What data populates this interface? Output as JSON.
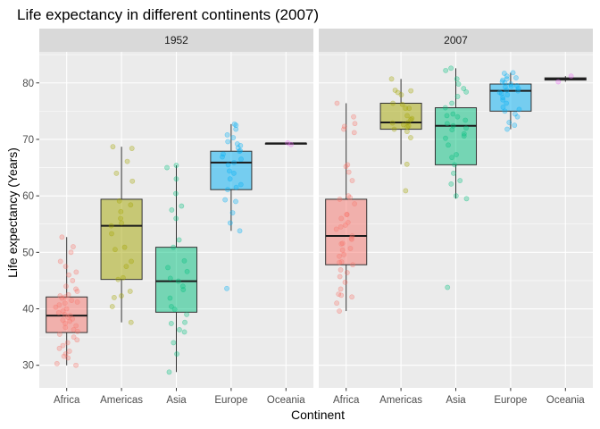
{
  "chart_data": {
    "type": "box",
    "title": "Life expectancy in different continents (2007)",
    "xlabel": "Continent",
    "ylabel": "Life expectancy (Years)",
    "categories": [
      "Africa",
      "Americas",
      "Asia",
      "Europe",
      "Oceania"
    ],
    "ylim": [
      26,
      85.5
    ],
    "yticks": [
      30,
      40,
      50,
      60,
      70,
      80
    ],
    "grid": true,
    "legend": "none",
    "colors": {
      "Africa": "#F8766D",
      "Americas": "#A3A500",
      "Asia": "#00BF7D",
      "Europe": "#00B0F6",
      "Oceania": "#E76BF3"
    },
    "panels": [
      {
        "label": "1952",
        "boxes": [
          {
            "category": "Africa",
            "min": 30.0,
            "q1": 35.8,
            "median": 38.8,
            "q3": 42.1,
            "max": 52.7,
            "points": [
              30.0,
              30.3,
              31.3,
              31.6,
              32.0,
              32.5,
              33.0,
              33.5,
              34.0,
              34.5,
              35.0,
              35.5,
              36.0,
              36.3,
              36.7,
              37.0,
              37.4,
              37.8,
              38.0,
              38.2,
              38.5,
              38.8,
              39.0,
              39.3,
              39.6,
              40.0,
              40.3,
              40.7,
              41.0,
              41.2,
              41.5,
              41.9,
              42.1,
              42.3,
              42.5,
              43.1,
              43.5,
              44.0,
              45.0,
              46.0,
              46.5,
              47.5,
              48.4,
              50.0,
              51.0,
              52.7
            ]
          },
          {
            "category": "Americas",
            "min": 37.6,
            "q1": 45.2,
            "median": 54.7,
            "q3": 59.4,
            "max": 68.7,
            "points": [
              37.6,
              40.4,
              42.0,
              42.3,
              43.1,
              45.2,
              45.5,
              47.5,
              48.4,
              50.5,
              50.9,
              53.3,
              54.7,
              55.2,
              56.0,
              57.2,
              58.4,
              59.1,
              62.6,
              64.0,
              66.1,
              68.4,
              68.7
            ]
          },
          {
            "category": "Asia",
            "min": 28.8,
            "q1": 39.4,
            "median": 44.9,
            "q3": 50.9,
            "max": 65.4,
            "points": [
              28.8,
              32.0,
              34.0,
              35.9,
              36.3,
              37.4,
              37.6,
              39.0,
              39.9,
              40.4,
              41.9,
              43.4,
              44.0,
              44.9,
              45.4,
              46.6,
              47.3,
              48.5,
              50.9,
              52.2,
              56.0,
              57.5,
              58.2,
              60.4,
              63.0,
              65.0,
              65.4
            ]
          },
          {
            "category": "Europe",
            "min": 53.8,
            "q1": 61.1,
            "median": 65.9,
            "q3": 67.9,
            "max": 72.7,
            "points": [
              43.6,
              53.8,
              55.2,
              57.0,
              59.0,
              59.3,
              61.1,
              61.5,
              62.0,
              63.0,
              64.0,
              64.4,
              65.5,
              65.9,
              66.5,
              66.9,
              67.4,
              67.9,
              68.0,
              68.5,
              68.9,
              69.2,
              69.6,
              70.3,
              70.8,
              71.8,
              72.5,
              72.7
            ]
          },
          {
            "category": "Oceania",
            "min": 69.1,
            "q1": 69.2,
            "median": 69.3,
            "q3": 69.3,
            "max": 69.4,
            "points": [
              69.1,
              69.4
            ]
          }
        ]
      },
      {
        "label": "2007",
        "boxes": [
          {
            "category": "Africa",
            "min": 39.6,
            "q1": 47.8,
            "median": 52.9,
            "q3": 59.4,
            "max": 76.4,
            "points": [
              39.6,
              41.0,
              42.1,
              42.4,
              42.6,
              43.5,
              44.7,
              45.7,
              46.4,
              46.9,
              47.8,
              48.2,
              48.3,
              49.3,
              49.6,
              50.4,
              50.7,
              51.5,
              51.6,
              52.3,
              52.5,
              52.9,
              54.1,
              54.5,
              54.8,
              55.3,
              56.0,
              56.7,
              56.7,
              58.6,
              59.4,
              59.7,
              60.0,
              62.7,
              64.2,
              65.2,
              65.5,
              71.2,
              71.8,
              72.3,
              72.8,
              74.0,
              76.4
            ]
          },
          {
            "category": "Americas",
            "min": 65.6,
            "q1": 71.8,
            "median": 73.0,
            "q3": 76.4,
            "max": 80.7,
            "points": [
              60.9,
              65.6,
              70.3,
              71.4,
              71.8,
              72.2,
              72.4,
              72.6,
              72.9,
              73.0,
              73.5,
              73.7,
              74.2,
              75.5,
              75.5,
              76.2,
              76.4,
              77.9,
              78.3,
              78.6,
              78.7,
              80.7
            ]
          },
          {
            "category": "Asia",
            "min": 59.5,
            "q1": 65.5,
            "median": 72.4,
            "q3": 75.6,
            "max": 82.6,
            "points": [
              43.8,
              59.5,
              60.0,
              62.1,
              62.7,
              64.0,
              65.5,
              66.8,
              67.3,
              69.0,
              70.2,
              70.6,
              71.0,
              71.7,
              72.0,
              72.4,
              72.8,
              73.4,
              74.0,
              74.2,
              74.5,
              75.6,
              76.4,
              77.6,
              78.4,
              79.0,
              79.8,
              80.7,
              82.2,
              82.6
            ]
          },
          {
            "category": "Europe",
            "min": 71.8,
            "q1": 75.0,
            "median": 78.6,
            "q3": 79.8,
            "max": 81.8,
            "points": [
              71.8,
              72.5,
              73.0,
              74.0,
              74.5,
              75.0,
              75.3,
              75.7,
              76.4,
              77.0,
              77.4,
              77.9,
              78.1,
              78.3,
              78.6,
              78.7,
              79.0,
              79.3,
              79.4,
              79.5,
              79.8,
              80.0,
              80.2,
              80.5,
              80.7,
              80.9,
              81.2,
              81.7,
              81.8
            ]
          },
          {
            "category": "Oceania",
            "min": 80.2,
            "q1": 80.5,
            "median": 80.7,
            "q3": 80.9,
            "max": 81.2,
            "points": [
              80.2,
              81.2
            ]
          }
        ]
      }
    ]
  }
}
